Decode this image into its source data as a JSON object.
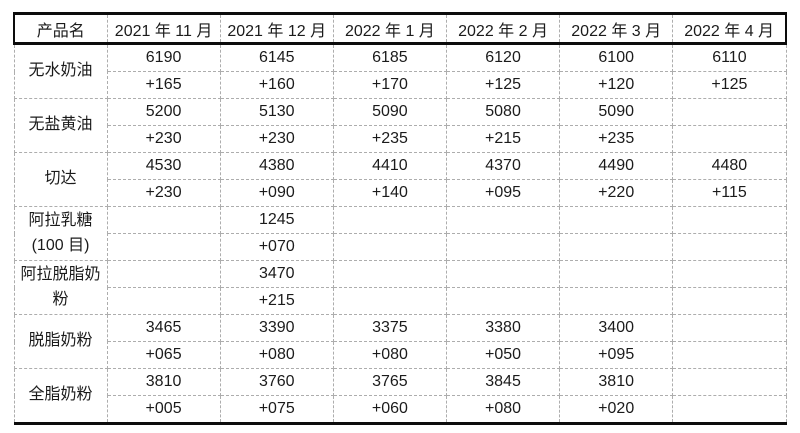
{
  "table": {
    "headers": [
      "产品名",
      "2021 年 11 月",
      "2021 年 12 月",
      "2022 年 1 月",
      "2022 年 2 月",
      "2022 年 3 月",
      "2022 年 4 月"
    ],
    "products": [
      {
        "name": "无水奶油",
        "prices": [
          "6190",
          "6145",
          "6185",
          "6120",
          "6100",
          "6110"
        ],
        "changes": [
          "+165",
          "+160",
          "+170",
          "+125",
          "+120",
          "+125"
        ]
      },
      {
        "name": "无盐黄油",
        "prices": [
          "5200",
          "5130",
          "5090",
          "5080",
          "5090",
          ""
        ],
        "changes": [
          "+230",
          "+230",
          "+235",
          "+215",
          "+235",
          ""
        ]
      },
      {
        "name": "切达",
        "prices": [
          "4530",
          "4380",
          "4410",
          "4370",
          "4490",
          "4480"
        ],
        "changes": [
          "+230",
          "+090",
          "+140",
          "+095",
          "+220",
          "+115"
        ]
      },
      {
        "name": "阿拉乳糖\n(100 目)",
        "prices": [
          "",
          "1245",
          "",
          "",
          "",
          ""
        ],
        "changes": [
          "",
          "+070",
          "",
          "",
          "",
          ""
        ]
      },
      {
        "name": "阿拉脱脂奶\n粉",
        "prices": [
          "",
          "3470",
          "",
          "",
          "",
          ""
        ],
        "changes": [
          "",
          "+215",
          "",
          "",
          "",
          ""
        ]
      },
      {
        "name": "脱脂奶粉",
        "prices": [
          "3465",
          "3390",
          "3375",
          "3380",
          "3400",
          ""
        ],
        "changes": [
          "+065",
          "+080",
          "+080",
          "+050",
          "+095",
          ""
        ]
      },
      {
        "name": "全脂奶粉",
        "prices": [
          "3810",
          "3760",
          "3765",
          "3845",
          "3810",
          ""
        ],
        "changes": [
          "+005",
          "+075",
          "+060",
          "+080",
          "+020",
          ""
        ]
      }
    ]
  },
  "colors": {
    "text": "#1b1b1b",
    "thick_rule": "#0c0c0c",
    "dashed_grid": "#adadad",
    "background": "#ffffff"
  }
}
